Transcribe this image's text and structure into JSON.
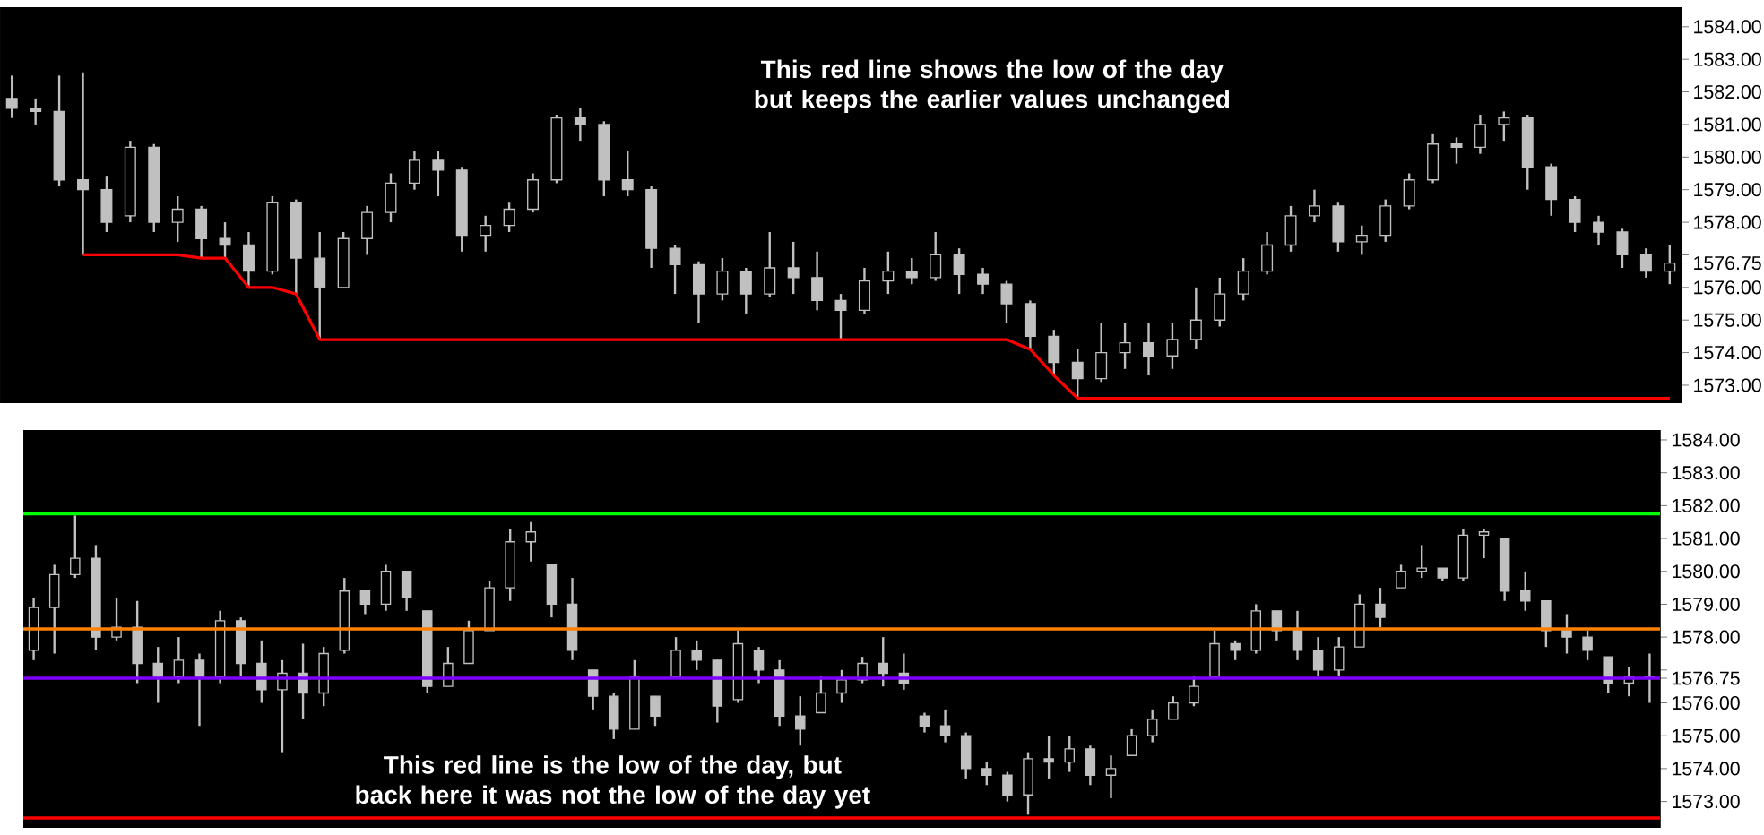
{
  "chart_data": [
    {
      "type": "candlestick",
      "categories": [
        null,
        null,
        null,
        null,
        null,
        null,
        null,
        null,
        null,
        null,
        null,
        null,
        null,
        null,
        null,
        null,
        null,
        null,
        null,
        null,
        null,
        null,
        null,
        null,
        null,
        null,
        null,
        null,
        null,
        null,
        null,
        null,
        null,
        null,
        null,
        null,
        null,
        null,
        null,
        null,
        null,
        null,
        null,
        null,
        null,
        null,
        null,
        null,
        null,
        null,
        null,
        null,
        null,
        null,
        null,
        null,
        null,
        null,
        null,
        null,
        null,
        null,
        null,
        null,
        null,
        null,
        null,
        null,
        null,
        null,
        null
      ],
      "color": "#c0c0c0",
      "ohlc": [
        [
          1581.8,
          1582.5,
          1581.2,
          1581.5
        ],
        [
          1581.5,
          1581.8,
          1581.0,
          1581.4
        ],
        [
          1581.4,
          1582.5,
          1579.1,
          1579.3
        ],
        [
          1579.3,
          1582.6,
          1577.0,
          1579.0
        ],
        [
          1579.0,
          1579.4,
          1577.7,
          1578.0
        ],
        [
          1578.2,
          1580.5,
          1578.0,
          1580.3
        ],
        [
          1580.3,
          1580.4,
          1577.7,
          1578.0
        ],
        [
          1578.0,
          1578.8,
          1577.4,
          1578.4
        ],
        [
          1578.4,
          1578.5,
          1576.9,
          1577.5
        ],
        [
          1577.5,
          1578.0,
          1576.9,
          1577.3
        ],
        [
          1577.3,
          1577.7,
          1576.0,
          1576.5
        ],
        [
          1576.5,
          1578.8,
          1576.4,
          1578.6
        ],
        [
          1578.6,
          1578.7,
          1575.8,
          1576.9
        ],
        [
          1576.9,
          1577.7,
          1574.4,
          1576.0
        ],
        [
          1576.0,
          1577.7,
          1576.0,
          1577.5
        ],
        [
          1577.5,
          1578.5,
          1577.0,
          1578.3
        ],
        [
          1578.3,
          1579.5,
          1578.0,
          1579.2
        ],
        [
          1579.2,
          1580.2,
          1579.0,
          1579.9
        ],
        [
          1579.9,
          1580.2,
          1578.8,
          1579.6
        ],
        [
          1579.6,
          1579.7,
          1577.1,
          1577.6
        ],
        [
          1577.6,
          1578.2,
          1577.1,
          1577.9
        ],
        [
          1577.9,
          1578.6,
          1577.7,
          1578.4
        ],
        [
          1578.4,
          1579.5,
          1578.3,
          1579.3
        ],
        [
          1579.3,
          1581.3,
          1579.2,
          1581.2
        ],
        [
          1581.2,
          1581.5,
          1580.5,
          1581.0
        ],
        [
          1581.0,
          1581.1,
          1578.8,
          1579.3
        ],
        [
          1579.3,
          1580.2,
          1578.8,
          1579.0
        ],
        [
          1579.0,
          1579.1,
          1576.6,
          1577.2
        ],
        [
          1577.2,
          1577.3,
          1575.8,
          1576.7
        ],
        [
          1576.7,
          1576.8,
          1574.9,
          1575.8
        ],
        [
          1575.8,
          1576.9,
          1575.6,
          1576.5
        ],
        [
          1576.5,
          1576.6,
          1575.2,
          1575.8
        ],
        [
          1575.8,
          1577.7,
          1575.7,
          1576.6
        ],
        [
          1576.6,
          1577.4,
          1575.8,
          1576.3
        ],
        [
          1576.3,
          1577.1,
          1575.3,
          1575.6
        ],
        [
          1575.6,
          1575.8,
          1574.4,
          1575.3
        ],
        [
          1575.3,
          1576.6,
          1575.2,
          1576.2
        ],
        [
          1576.2,
          1577.1,
          1575.8,
          1576.5
        ],
        [
          1576.5,
          1576.9,
          1576.1,
          1576.3
        ],
        [
          1576.3,
          1577.7,
          1576.2,
          1577.0
        ],
        [
          1577.0,
          1577.2,
          1575.8,
          1576.4
        ],
        [
          1576.4,
          1576.6,
          1575.8,
          1576.1
        ],
        [
          1576.1,
          1576.2,
          1574.9,
          1575.5
        ],
        [
          1575.5,
          1575.6,
          1574.1,
          1574.5
        ],
        [
          1574.5,
          1574.7,
          1573.3,
          1573.7
        ],
        [
          1573.7,
          1574.1,
          1572.6,
          1573.2
        ],
        [
          1573.2,
          1574.9,
          1573.1,
          1574.0
        ],
        [
          1574.0,
          1574.9,
          1573.5,
          1574.3
        ],
        [
          1574.3,
          1574.9,
          1573.3,
          1573.9
        ],
        [
          1573.9,
          1574.9,
          1573.5,
          1574.4
        ],
        [
          1574.4,
          1576.0,
          1574.1,
          1575.0
        ],
        [
          1575.0,
          1576.3,
          1574.8,
          1575.8
        ],
        [
          1575.8,
          1576.9,
          1575.6,
          1576.5
        ],
        [
          1576.5,
          1577.7,
          1576.4,
          1577.3
        ],
        [
          1577.3,
          1578.5,
          1577.1,
          1578.2
        ],
        [
          1578.2,
          1579.0,
          1578.0,
          1578.5
        ],
        [
          1578.5,
          1578.6,
          1577.1,
          1577.4
        ],
        [
          1577.4,
          1577.9,
          1577.0,
          1577.6
        ],
        [
          1577.6,
          1578.7,
          1577.4,
          1578.5
        ],
        [
          1578.5,
          1579.5,
          1578.4,
          1579.3
        ],
        [
          1579.3,
          1580.7,
          1579.2,
          1580.4
        ],
        [
          1580.4,
          1580.6,
          1579.8,
          1580.3
        ],
        [
          1580.3,
          1581.3,
          1580.1,
          1581.0
        ],
        [
          1581.0,
          1581.4,
          1580.5,
          1581.2
        ],
        [
          1581.2,
          1581.3,
          1579.0,
          1579.7
        ],
        [
          1579.7,
          1579.8,
          1578.2,
          1578.7
        ],
        [
          1578.7,
          1578.8,
          1577.7,
          1578.0
        ],
        [
          1578.0,
          1578.2,
          1577.3,
          1577.7
        ],
        [
          1577.7,
          1577.8,
          1576.6,
          1577.0
        ],
        [
          1577.0,
          1577.2,
          1576.3,
          1576.5
        ],
        [
          1576.5,
          1577.3,
          1576.1,
          1576.75
        ]
      ],
      "series": [
        {
          "type": "line",
          "color": "#ff0000",
          "values": [
            null,
            null,
            null,
            1577.0,
            1577.0,
            1577.0,
            1577.0,
            1577.0,
            1576.9,
            1576.9,
            1576.0,
            1576.0,
            1575.8,
            1574.4,
            1574.4,
            1574.4,
            1574.4,
            1574.4,
            1574.4,
            1574.4,
            1574.4,
            1574.4,
            1574.4,
            1574.4,
            1574.4,
            1574.4,
            1574.4,
            1574.4,
            1574.4,
            1574.4,
            1574.4,
            1574.4,
            1574.4,
            1574.4,
            1574.4,
            1574.4,
            1574.4,
            1574.4,
            1574.4,
            1574.4,
            1574.4,
            1574.4,
            1574.4,
            1574.1,
            1573.3,
            1572.6,
            1572.6,
            1572.6,
            1572.6,
            1572.6,
            1572.6,
            1572.6,
            1572.6,
            1572.6,
            1572.6,
            1572.6,
            1572.6,
            1572.6,
            1572.6,
            1572.6,
            1572.6,
            1572.6,
            1572.6,
            1572.6,
            1572.6,
            1572.6,
            1572.6,
            1572.6,
            1572.6,
            1572.6,
            1572.6
          ]
        }
      ],
      "ylim": [
        1572.45,
        1584.6
      ],
      "yticks": [
        {
          "value": 1584,
          "label": "1584.00"
        },
        {
          "value": 1583,
          "label": "1583.00"
        },
        {
          "value": 1582,
          "label": "1582.00"
        },
        {
          "value": 1581,
          "label": "1581.00"
        },
        {
          "value": 1580,
          "label": "1580.00"
        },
        {
          "value": 1579,
          "label": "1579.00"
        },
        {
          "value": 1578,
          "label": "1578.00"
        },
        {
          "value": 1577,
          "label": null
        },
        {
          "value": 1576.75,
          "label": "1576.75"
        },
        {
          "value": 1576,
          "label": "1576.00"
        },
        {
          "value": 1575,
          "label": "1575.00"
        },
        {
          "value": 1574,
          "label": "1574.00"
        },
        {
          "value": 1573,
          "label": "1573.00"
        }
      ],
      "annotations": [
        "This red line shows the low of the day but keeps the earlier values unchanged"
      ]
    },
    {
      "type": "candlestick",
      "categories": [
        null,
        null,
        null,
        null,
        null,
        null,
        null,
        null,
        null,
        null,
        null,
        null,
        null,
        null,
        null,
        null,
        null,
        null,
        null,
        null,
        null,
        null,
        null,
        null,
        null,
        null,
        null,
        null,
        null,
        null,
        null,
        null,
        null,
        null,
        null,
        null,
        null,
        null,
        null,
        null,
        null,
        null,
        null,
        null,
        null,
        null,
        null,
        null,
        null,
        null,
        null,
        null,
        null,
        null,
        null,
        null,
        null,
        null,
        null,
        null,
        null,
        null,
        null,
        null,
        null,
        null,
        null,
        null,
        null,
        null,
        null,
        null,
        null,
        null,
        null,
        null,
        null,
        null,
        null
      ],
      "color": "#c0c0c0",
      "ohlc": [
        [
          1577.6,
          1579.2,
          1577.3,
          1578.9
        ],
        [
          1578.9,
          1580.2,
          1577.5,
          1579.9
        ],
        [
          1579.9,
          1581.7,
          1579.8,
          1580.4
        ],
        [
          1580.4,
          1580.8,
          1577.6,
          1578.0
        ],
        [
          1578.0,
          1579.2,
          1577.9,
          1578.3
        ],
        [
          1578.3,
          1579.1,
          1576.6,
          1577.2
        ],
        [
          1577.2,
          1577.7,
          1576.0,
          1576.8
        ],
        [
          1576.8,
          1578.0,
          1576.6,
          1577.3
        ],
        [
          1577.3,
          1577.5,
          1575.3,
          1576.8
        ],
        [
          1576.8,
          1578.8,
          1576.6,
          1578.5
        ],
        [
          1578.5,
          1578.6,
          1576.8,
          1577.2
        ],
        [
          1577.2,
          1577.9,
          1576.0,
          1576.4
        ],
        [
          1576.4,
          1577.3,
          1574.5,
          1576.9
        ],
        [
          1576.9,
          1577.8,
          1575.5,
          1576.3
        ],
        [
          1576.3,
          1577.7,
          1575.9,
          1577.5
        ],
        [
          1577.6,
          1579.8,
          1577.5,
          1579.4
        ],
        [
          1579.4,
          1579.4,
          1578.7,
          1579.0
        ],
        [
          1579.0,
          1580.2,
          1578.8,
          1580.0
        ],
        [
          1580.0,
          1580.0,
          1578.8,
          1579.2
        ],
        [
          1578.8,
          1578.8,
          1576.3,
          1576.5
        ],
        [
          1576.5,
          1577.7,
          1576.5,
          1577.2
        ],
        [
          1577.2,
          1578.5,
          1577.2,
          1578.2
        ],
        [
          1578.2,
          1579.7,
          1578.2,
          1579.5
        ],
        [
          1579.5,
          1581.3,
          1579.1,
          1580.9
        ],
        [
          1580.9,
          1581.5,
          1580.3,
          1581.2
        ],
        [
          1580.2,
          1580.2,
          1578.6,
          1579.0
        ],
        [
          1579.0,
          1579.8,
          1577.3,
          1577.6
        ],
        [
          1577.0,
          1577.0,
          1575.8,
          1576.2
        ],
        [
          1576.2,
          1576.3,
          1574.9,
          1575.2
        ],
        [
          1575.2,
          1577.3,
          1575.2,
          1576.8
        ],
        [
          1576.2,
          1576.2,
          1575.3,
          1575.6
        ],
        [
          1576.8,
          1578.0,
          1576.8,
          1577.6
        ],
        [
          1577.6,
          1577.9,
          1577.0,
          1577.3
        ],
        [
          1577.3,
          1577.3,
          1575.4,
          1575.9
        ],
        [
          1576.1,
          1578.2,
          1576.0,
          1577.8
        ],
        [
          1577.6,
          1577.7,
          1576.6,
          1577.0
        ],
        [
          1577.0,
          1577.3,
          1575.3,
          1575.6
        ],
        [
          1575.6,
          1576.2,
          1574.7,
          1575.2
        ],
        [
          1575.7,
          1576.8,
          1575.7,
          1576.3
        ],
        [
          1576.3,
          1577.0,
          1576.0,
          1576.7
        ],
        [
          1576.7,
          1577.4,
          1576.6,
          1577.2
        ],
        [
          1577.2,
          1578.0,
          1576.5,
          1576.9
        ],
        [
          1576.9,
          1577.5,
          1576.4,
          1576.6
        ],
        [
          1575.6,
          1575.7,
          1575.1,
          1575.3
        ],
        [
          1575.3,
          1575.8,
          1574.8,
          1575.0
        ],
        [
          1575.0,
          1575.1,
          1573.7,
          1574.0
        ],
        [
          1574.0,
          1574.2,
          1573.5,
          1573.8
        ],
        [
          1573.8,
          1573.9,
          1573.0,
          1573.2
        ],
        [
          1573.2,
          1574.5,
          1572.6,
          1574.3
        ],
        [
          1574.3,
          1575.0,
          1573.7,
          1574.2
        ],
        [
          1574.2,
          1575.0,
          1573.9,
          1574.6
        ],
        [
          1574.6,
          1574.7,
          1573.5,
          1573.8
        ],
        [
          1573.8,
          1574.4,
          1573.1,
          1574.0
        ],
        [
          1574.4,
          1575.2,
          1574.4,
          1575.0
        ],
        [
          1575.0,
          1575.8,
          1574.8,
          1575.5
        ],
        [
          1575.5,
          1576.2,
          1575.5,
          1576.0
        ],
        [
          1576.0,
          1576.8,
          1575.9,
          1576.5
        ],
        [
          1576.8,
          1578.2,
          1576.8,
          1577.8
        ],
        [
          1577.8,
          1577.9,
          1577.3,
          1577.6
        ],
        [
          1577.6,
          1579.0,
          1577.5,
          1578.8
        ],
        [
          1578.8,
          1578.8,
          1577.9,
          1578.2
        ],
        [
          1578.2,
          1578.8,
          1577.3,
          1577.6
        ],
        [
          1577.6,
          1578.0,
          1576.8,
          1577.0
        ],
        [
          1577.0,
          1578.0,
          1576.8,
          1577.7
        ],
        [
          1577.7,
          1579.3,
          1577.7,
          1579.0
        ],
        [
          1579.0,
          1579.5,
          1578.3,
          1578.6
        ],
        [
          1579.5,
          1580.2,
          1579.5,
          1580.0
        ],
        [
          1580.0,
          1580.8,
          1579.8,
          1580.1
        ],
        [
          1580.1,
          1580.1,
          1579.7,
          1579.8
        ],
        [
          1579.8,
          1581.3,
          1579.7,
          1581.1
        ],
        [
          1581.1,
          1581.3,
          1580.4,
          1581.2
        ],
        [
          1581.0,
          1581.0,
          1579.1,
          1579.4
        ],
        [
          1579.4,
          1580.0,
          1578.8,
          1579.1
        ],
        [
          1579.1,
          1579.1,
          1577.7,
          1578.2
        ],
        [
          1578.2,
          1578.7,
          1577.5,
          1578.0
        ],
        [
          1578.0,
          1578.2,
          1577.3,
          1577.6
        ],
        [
          1577.4,
          1577.4,
          1576.3,
          1576.6
        ],
        [
          1576.6,
          1577.1,
          1576.2,
          1576.8
        ],
        [
          1576.8,
          1577.5,
          1576.0,
          1576.75
        ]
      ],
      "ref_lines": [
        {
          "axis": "y",
          "value": 1581.75,
          "color": "#00ff00"
        },
        {
          "axis": "y",
          "value": 1578.25,
          "color": "#ff8000"
        },
        {
          "axis": "y",
          "value": 1576.75,
          "color": "#8000ff"
        },
        {
          "axis": "y",
          "value": 1572.5,
          "color": "#ff0000"
        }
      ],
      "ylim": [
        1572.2,
        1584.3
      ],
      "yticks": [
        {
          "value": 1584,
          "label": "1584.00"
        },
        {
          "value": 1583,
          "label": "1583.00"
        },
        {
          "value": 1582,
          "label": "1582.00"
        },
        {
          "value": 1581,
          "label": "1581.00"
        },
        {
          "value": 1580,
          "label": "1580.00"
        },
        {
          "value": 1579,
          "label": "1579.00"
        },
        {
          "value": 1578,
          "label": "1578.00"
        },
        {
          "value": 1577,
          "label": null
        },
        {
          "value": 1576.75,
          "label": "1576.75"
        },
        {
          "value": 1576,
          "label": "1576.00"
        },
        {
          "value": 1575,
          "label": "1575.00"
        },
        {
          "value": 1574,
          "label": "1574.00"
        },
        {
          "value": 1573,
          "label": "1573.00"
        }
      ],
      "annotations": [
        "This red line is the low of the day, but back here it was not the low of the day yet"
      ]
    }
  ]
}
